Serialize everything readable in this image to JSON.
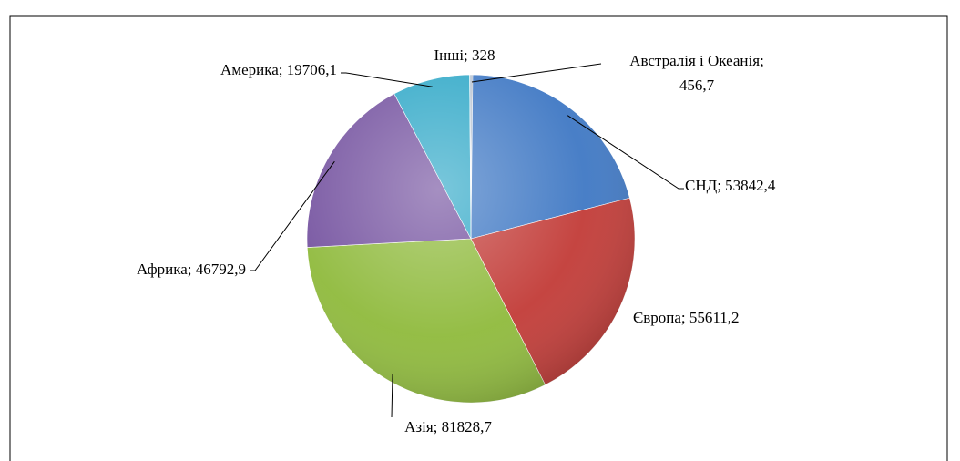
{
  "chart_data": {
    "type": "pie",
    "values": [
      456.7,
      53842.4,
      55611.2,
      81828.7,
      46792.9,
      19706.1,
      328
    ],
    "value_labels": [
      "Австралія і Океанія; 456,7",
      "СНД; 53842,4",
      "Європа; 55611,2",
      "Азія; 81828,7",
      "Африка; 46792,9",
      "Америка; 19706,1",
      "Інші; 328"
    ],
    "colors": [
      "#8c9db5",
      "#3f78c4",
      "#c23b37",
      "#8fba3c",
      "#7553a0",
      "#32a9c8",
      "#9fb4c8"
    ]
  }
}
